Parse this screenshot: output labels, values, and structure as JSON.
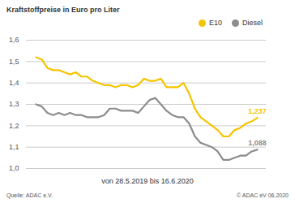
{
  "chart_data": {
    "type": "line",
    "title": "Kraftstoffpreise in Euro pro Liter",
    "x_label": "von 28.5.2019 bis 16.6.2020",
    "categories": [
      null,
      null,
      null,
      null,
      null,
      null,
      null,
      null,
      null,
      null,
      null,
      null,
      null,
      null,
      null,
      null,
      null,
      null,
      null,
      null,
      null,
      null,
      null,
      null,
      null,
      null,
      null,
      null,
      null,
      null,
      null,
      null,
      null,
      null,
      null,
      null,
      null,
      null,
      null,
      null
    ],
    "series": [
      {
        "name": "E10",
        "color": "#f5c400",
        "last_label": "1,237",
        "values": [
          1.52,
          1.51,
          1.47,
          1.46,
          1.46,
          1.45,
          1.44,
          1.45,
          1.43,
          1.43,
          1.41,
          1.4,
          1.39,
          1.39,
          1.38,
          1.39,
          1.39,
          1.38,
          1.39,
          1.42,
          1.41,
          1.41,
          1.42,
          1.38,
          1.38,
          1.38,
          1.4,
          1.35,
          1.28,
          1.24,
          1.22,
          1.2,
          1.18,
          1.15,
          1.15,
          1.18,
          1.19,
          1.21,
          1.22,
          1.237
        ]
      },
      {
        "name": "Diesel",
        "color": "#8c8c8c",
        "last_label": "1,088",
        "values": [
          1.3,
          1.29,
          1.26,
          1.25,
          1.26,
          1.25,
          1.26,
          1.25,
          1.25,
          1.24,
          1.24,
          1.24,
          1.25,
          1.28,
          1.28,
          1.27,
          1.27,
          1.27,
          1.26,
          1.29,
          1.32,
          1.33,
          1.3,
          1.27,
          1.25,
          1.24,
          1.24,
          1.21,
          1.15,
          1.12,
          1.11,
          1.1,
          1.08,
          1.04,
          1.04,
          1.05,
          1.06,
          1.06,
          1.08,
          1.088
        ]
      }
    ],
    "ylim": [
      1.0,
      1.6
    ],
    "yticks": [
      {
        "value": 1.0,
        "label": "1,0"
      },
      {
        "value": 1.1,
        "label": "1,1"
      },
      {
        "value": 1.2,
        "label": "1,2"
      },
      {
        "value": 1.3,
        "label": "1,3"
      },
      {
        "value": 1.4,
        "label": "1,4"
      },
      {
        "value": 1.5,
        "label": "1,5"
      },
      {
        "value": 1.6,
        "label": "1,6"
      }
    ],
    "grid": true,
    "legend": "top-right",
    "tick_labels": "y",
    "annotations": [
      {
        "text": "Quelle: ADAC e.V."
      },
      {
        "text": "© ADAC eV 06.2020"
      }
    ]
  }
}
